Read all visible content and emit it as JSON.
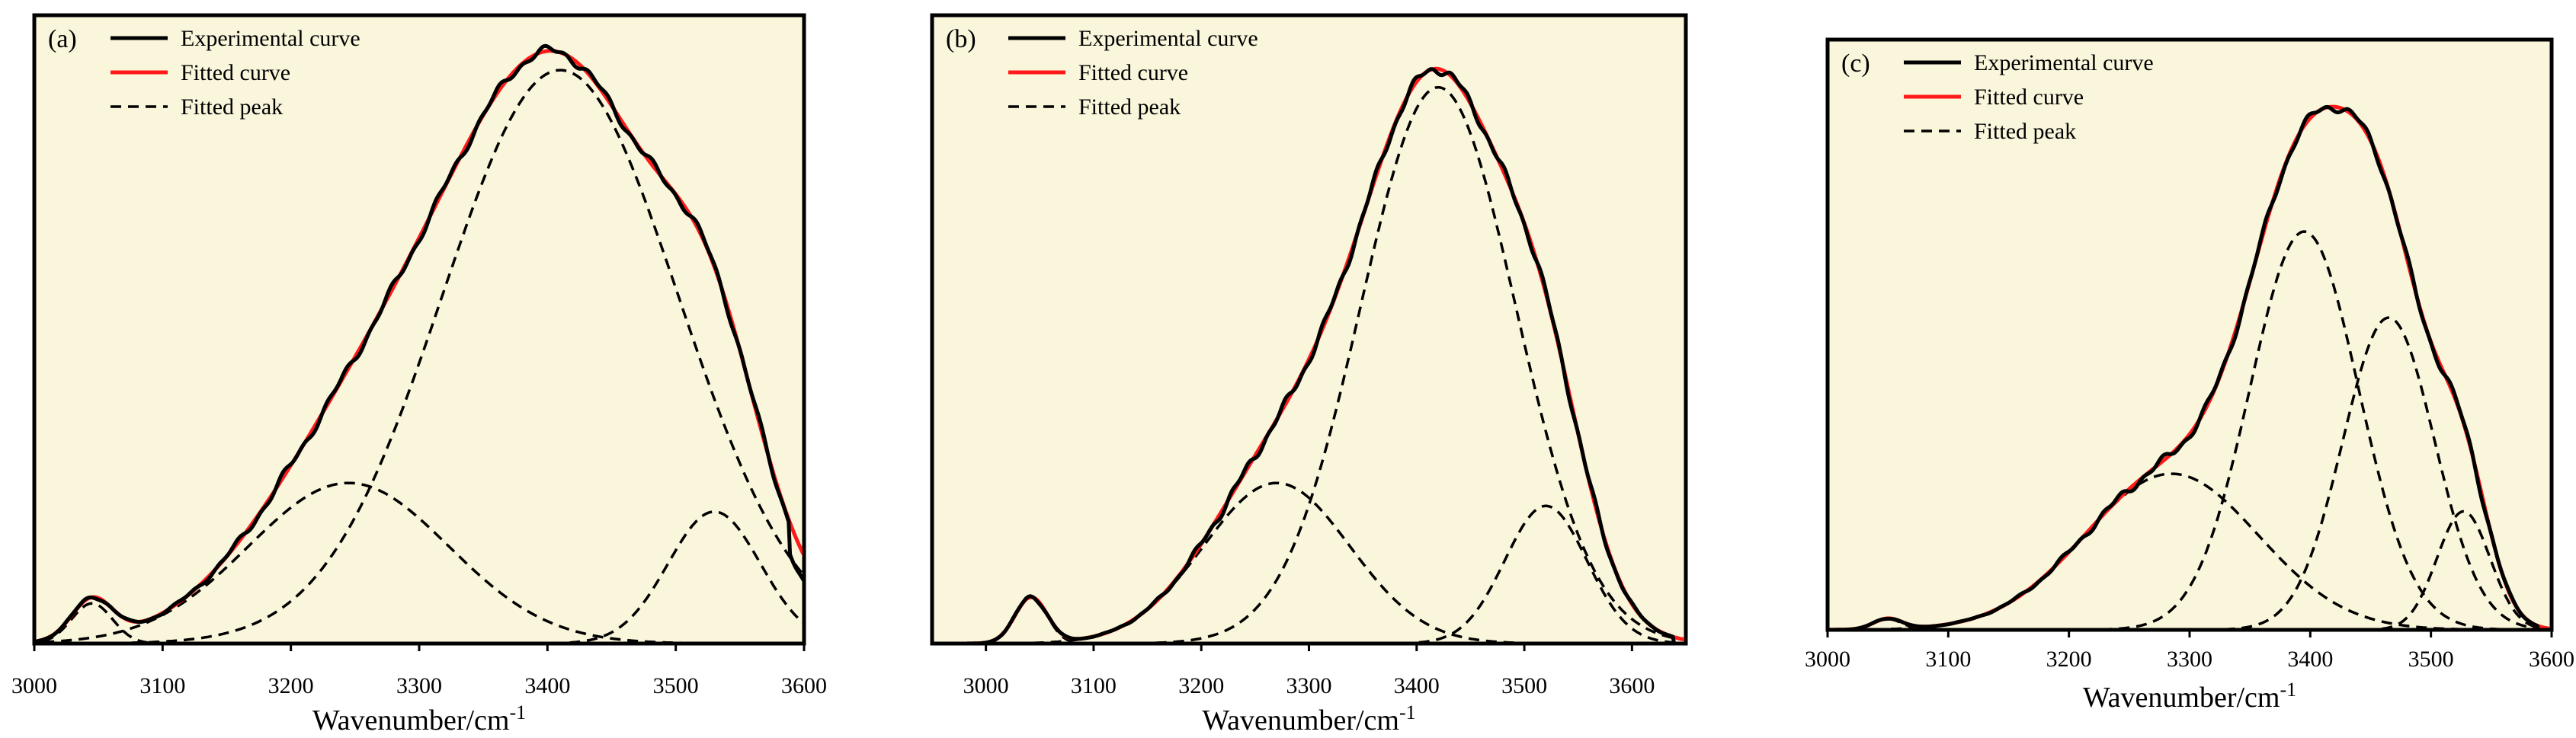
{
  "chart_data": [
    {
      "type": "line",
      "panel_label": "(a)",
      "xlabel": "Wavenumber/cm",
      "xlabel_sup": "-1",
      "xlim": [
        3000,
        3600
      ],
      "ylim": [
        0,
        1.05
      ],
      "xticks": [
        "3000",
        "3100",
        "3200",
        "3300",
        "3400",
        "3500",
        "3600"
      ],
      "legend": [
        "Experimental curve",
        "Fitted curve",
        "Fitted peak"
      ],
      "legend_position": "top-left",
      "colors": {
        "experimental": "#000000",
        "fitted": "#ff1a1a",
        "peak": "#000000"
      },
      "small_peak": {
        "center": 3045,
        "amplitude": 0.07,
        "width": 16
      },
      "peaks": [
        {
          "center": 3245,
          "amplitude": 0.28,
          "width": 78
        },
        {
          "center": 3410,
          "amplitude": 1.0,
          "width": 92
        },
        {
          "center": 3530,
          "amplitude": 0.23,
          "width": 36
        }
      ]
    },
    {
      "type": "line",
      "panel_label": "(b)",
      "xlabel": "Wavenumber/cm",
      "xlabel_sup": "-1",
      "xlim": [
        2950,
        3650
      ],
      "ylim": [
        0,
        1.05
      ],
      "xticks": [
        "3000",
        "3100",
        "3200",
        "3300",
        "3400",
        "3500",
        "3600"
      ],
      "legend": [
        "Experimental curve",
        "Fitted curve",
        "Fitted peak"
      ],
      "legend_position": "top-left",
      "colors": {
        "experimental": "#000000",
        "fitted": "#ff1a1a",
        "peak": "#000000"
      },
      "small_peak": {
        "center": 3042,
        "amplitude": 0.08,
        "width": 15
      },
      "peaks": [
        {
          "center": 3270,
          "amplitude": 0.28,
          "width": 68
        },
        {
          "center": 3420,
          "amplitude": 0.97,
          "width": 72
        },
        {
          "center": 3520,
          "amplitude": 0.24,
          "width": 38
        }
      ]
    },
    {
      "type": "line",
      "panel_label": "(c)",
      "xlabel": "Wavenumber/cm",
      "xlabel_sup": "-1",
      "xlim": [
        3000,
        3600
      ],
      "ylim": [
        0,
        1.05
      ],
      "xticks": [
        "3000",
        "3100",
        "3200",
        "3300",
        "3400",
        "3500",
        "3600"
      ],
      "legend": [
        "Experimental curve",
        "Fitted curve",
        "Fitted peak"
      ],
      "legend_position": "top-left",
      "colors": {
        "experimental": "#000000",
        "fitted": "#ff1a1a",
        "peak": "#000000"
      },
      "small_peak": {
        "center": 3050,
        "amplitude": 0.02,
        "width": 12
      },
      "peaks": [
        {
          "center": 3285,
          "amplitude": 0.29,
          "width": 72
        },
        {
          "center": 3395,
          "amplitude": 0.74,
          "width": 45
        },
        {
          "center": 3465,
          "amplitude": 0.58,
          "width": 38
        },
        {
          "center": 3527,
          "amplitude": 0.22,
          "width": 22
        }
      ]
    }
  ]
}
